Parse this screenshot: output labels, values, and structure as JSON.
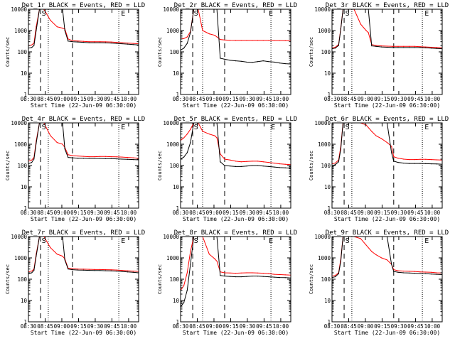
{
  "figure": {
    "shared_xlabel": "Start Time (22-Jun-09 06:30:00)",
    "shared_ylabel": "Counts/sec",
    "x_tick_labels": [
      "08:30",
      "08:45",
      "09:00",
      "09:15",
      "09:30",
      "09:45",
      "10:00"
    ],
    "y_tick_labels": [
      "1",
      "10",
      "100",
      "1000",
      "10000"
    ],
    "colors": {
      "events": "#000000",
      "lld": "#ff0000",
      "axes": "#000000",
      "background": "#ffffff"
    },
    "vertical_marker_labels": {
      "start": "S",
      "end": "E"
    }
  },
  "chart_data": [
    {
      "type": "line",
      "title": "Det_1r BLACK = Events, RED = LLD",
      "xlabel": "Start Time (22-Jun-09 06:30:00)",
      "ylabel": "Counts/sec",
      "y_scale": "log",
      "ylim": [
        1,
        10000
      ],
      "x_units": "minutes since 08:30",
      "xlim": [
        0,
        100
      ],
      "x": [
        0,
        3,
        5,
        7,
        10,
        14,
        20,
        26,
        31,
        33,
        36,
        40,
        45,
        50,
        55,
        60,
        65,
        70,
        75,
        80,
        85,
        90,
        95,
        100
      ],
      "series": [
        {
          "name": "Events",
          "color": "#000000",
          "values": [
            150,
            160,
            200,
            1000,
            12000,
            12000,
            12000,
            12000,
            12000,
            1000,
            320,
            300,
            290,
            280,
            270,
            270,
            270,
            265,
            260,
            250,
            240,
            230,
            220,
            210
          ]
        },
        {
          "name": "LLD",
          "color": "#ff0000",
          "values": [
            200,
            210,
            260,
            1500,
            12000,
            12000,
            3000,
            1500,
            1300,
            1200,
            400,
            330,
            320,
            310,
            300,
            300,
            300,
            295,
            290,
            280,
            270,
            260,
            250,
            240
          ]
        }
      ],
      "dashed_markers_minutes": [
        11,
        40
      ],
      "dotted_markers_minutes": [
        18,
        82
      ],
      "marker_labels": [
        {
          "text": "S",
          "minute": 14
        },
        {
          "text": "E",
          "minute": 86
        }
      ]
    },
    {
      "type": "line",
      "title": "Det_2r BLACK = Events, RED = LLD",
      "xlabel": "Start Time (22-Jun-09 06:30:00)",
      "ylabel": "Counts/sec",
      "y_scale": "log",
      "ylim": [
        1,
        10000
      ],
      "x_units": "minutes since 08:30",
      "xlim": [
        0,
        100
      ],
      "x": [
        0,
        3,
        6,
        9,
        12,
        16,
        20,
        26,
        31,
        33,
        36,
        40,
        45,
        50,
        55,
        60,
        65,
        70,
        75,
        80,
        85,
        90,
        95,
        100
      ],
      "series": [
        {
          "name": "Events",
          "color": "#000000",
          "values": [
            120,
            150,
            250,
            800,
            12000,
            12000,
            12000,
            12000,
            12000,
            12000,
            50,
            45,
            40,
            38,
            36,
            33,
            32,
            35,
            38,
            35,
            33,
            30,
            28,
            27
          ]
        },
        {
          "name": "LLD",
          "color": "#ff0000",
          "values": [
            400,
            420,
            500,
            900,
            12000,
            12000,
            1000,
            700,
            600,
            500,
            380,
            360,
            350,
            345,
            345,
            345,
            345,
            345,
            345,
            345,
            340,
            340,
            335,
            330
          ]
        }
      ],
      "dashed_markers_minutes": [
        11,
        40
      ],
      "dotted_markers_minutes": [
        20,
        82
      ],
      "marker_labels": [
        {
          "text": "S",
          "minute": 14
        },
        {
          "text": "E",
          "minute": 82
        }
      ]
    },
    {
      "type": "line",
      "title": "Det_3r BLACK = Events, RED = LLD",
      "xlabel": "Start Time (22-Jun-09 06:30:00)",
      "ylabel": "Counts/sec",
      "y_scale": "log",
      "ylim": [
        1,
        10000
      ],
      "x_units": "minutes since 08:30",
      "xlim": [
        0,
        100
      ],
      "x": [
        0,
        3,
        6,
        8,
        10,
        14,
        20,
        26,
        31,
        33,
        36,
        40,
        45,
        50,
        55,
        60,
        65,
        70,
        75,
        80,
        85,
        90,
        95,
        100
      ],
      "series": [
        {
          "name": "Events",
          "color": "#000000",
          "values": [
            140,
            150,
            200,
            1200,
            12000,
            12000,
            12000,
            12000,
            12000,
            12000,
            190,
            180,
            170,
            165,
            160,
            160,
            160,
            160,
            160,
            160,
            155,
            150,
            145,
            140
          ]
        },
        {
          "name": "LLD",
          "color": "#ff0000",
          "values": [
            150,
            165,
            220,
            1300,
            12000,
            12000,
            12000,
            2000,
            1000,
            800,
            220,
            200,
            190,
            185,
            180,
            180,
            180,
            180,
            180,
            175,
            170,
            165,
            160,
            155
          ]
        }
      ],
      "dashed_markers_minutes": [
        11,
        56
      ],
      "dotted_markers_minutes": [
        18,
        82
      ],
      "marker_labels": [
        {
          "text": "S",
          "minute": 14
        },
        {
          "text": "E",
          "minute": 86
        }
      ]
    },
    {
      "type": "line",
      "title": "Det_4r BLACK = Events, RED = LLD",
      "xlabel": "Start Time (22-Jun-09 06:30:00)",
      "ylabel": "Counts/sec",
      "y_scale": "log",
      "ylim": [
        1,
        10000
      ],
      "x_units": "minutes since 08:30",
      "xlim": [
        0,
        100
      ],
      "x": [
        0,
        3,
        5,
        7,
        10,
        14,
        20,
        26,
        31,
        33,
        36,
        40,
        45,
        50,
        55,
        60,
        65,
        70,
        75,
        80,
        85,
        90,
        95,
        100
      ],
      "series": [
        {
          "name": "Events",
          "color": "#000000",
          "values": [
            120,
            140,
            200,
            1100,
            12000,
            12000,
            12000,
            12000,
            12000,
            600,
            240,
            230,
            220,
            220,
            215,
            215,
            215,
            210,
            210,
            205,
            200,
            195,
            190,
            185
          ]
        },
        {
          "name": "LLD",
          "color": "#ff0000",
          "values": [
            160,
            180,
            240,
            1400,
            12000,
            12000,
            2500,
            1200,
            1000,
            700,
            320,
            290,
            280,
            270,
            260,
            260,
            265,
            265,
            260,
            255,
            250,
            240,
            230,
            220
          ]
        }
      ],
      "dashed_markers_minutes": [
        11,
        40
      ],
      "dotted_markers_minutes": [
        18,
        82
      ],
      "marker_labels": [
        {
          "text": "S",
          "minute": 14
        },
        {
          "text": "E",
          "minute": 86
        }
      ]
    },
    {
      "type": "line",
      "title": "Det_5r BLACK = Events, RED = LLD",
      "xlabel": "Start Time (22-Jun-09 06:30:00)",
      "ylabel": "Counts/sec",
      "y_scale": "log",
      "ylim": [
        1,
        10000
      ],
      "x_units": "minutes since 08:30",
      "xlim": [
        0,
        100
      ],
      "x": [
        0,
        3,
        6,
        9,
        12,
        16,
        20,
        26,
        31,
        33,
        36,
        40,
        45,
        50,
        55,
        60,
        65,
        70,
        75,
        80,
        85,
        90,
        95,
        100
      ],
      "series": [
        {
          "name": "Events",
          "color": "#000000",
          "values": [
            200,
            250,
            400,
            1200,
            12000,
            12000,
            12000,
            12000,
            12000,
            12000,
            150,
            100,
            95,
            90,
            90,
            95,
            100,
            100,
            95,
            90,
            85,
            80,
            78,
            75
          ]
        },
        {
          "name": "LLD",
          "color": "#ff0000",
          "values": [
            1500,
            2000,
            3000,
            5000,
            12000,
            12000,
            4000,
            3000,
            2500,
            2000,
            350,
            200,
            180,
            160,
            150,
            155,
            160,
            160,
            150,
            140,
            130,
            120,
            115,
            110
          ]
        }
      ],
      "dashed_markers_minutes": [
        11,
        40
      ],
      "dotted_markers_minutes": [
        20,
        82
      ],
      "marker_labels": [
        {
          "text": "S",
          "minute": 14
        },
        {
          "text": "E",
          "minute": 84
        }
      ]
    },
    {
      "type": "line",
      "title": "Det_6r BLACK = Events, RED = LLD",
      "xlabel": "Start Time (22-Jun-09 06:30:00)",
      "ylabel": "Counts/sec",
      "y_scale": "log",
      "ylim": [
        1,
        10000
      ],
      "x_units": "minutes since 08:30",
      "xlim": [
        0,
        100
      ],
      "x": [
        0,
        3,
        6,
        8,
        10,
        14,
        20,
        26,
        31,
        36,
        40,
        45,
        50,
        54,
        56,
        60,
        65,
        70,
        75,
        80,
        85,
        90,
        95,
        100
      ],
      "series": [
        {
          "name": "Events",
          "color": "#000000",
          "values": [
            100,
            110,
            150,
            600,
            12000,
            12000,
            12000,
            12000,
            12000,
            12000,
            12000,
            12000,
            12000,
            400,
            160,
            140,
            130,
            125,
            125,
            125,
            122,
            120,
            118,
            115
          ]
        },
        {
          "name": "LLD",
          "color": "#ff0000",
          "values": [
            120,
            130,
            180,
            800,
            12000,
            12000,
            12000,
            12000,
            8000,
            4000,
            2500,
            1800,
            1200,
            800,
            260,
            220,
            200,
            190,
            190,
            195,
            195,
            190,
            185,
            180
          ]
        }
      ],
      "dashed_markers_minutes": [
        11,
        56
      ],
      "dotted_markers_minutes": [
        18,
        82
      ],
      "marker_labels": [
        {
          "text": "S",
          "minute": 14
        },
        {
          "text": "E",
          "minute": 86
        }
      ]
    },
    {
      "type": "line",
      "title": "Det_7r BLACK = Events, RED = LLD",
      "xlabel": "Start Time (22-Jun-09 06:30:00)",
      "ylabel": "Counts/sec",
      "y_scale": "log",
      "ylim": [
        1,
        10000
      ],
      "x_units": "minutes since 08:30",
      "xlim": [
        0,
        100
      ],
      "x": [
        0,
        3,
        5,
        7,
        10,
        14,
        20,
        26,
        31,
        33,
        36,
        40,
        45,
        50,
        55,
        60,
        65,
        70,
        75,
        80,
        85,
        90,
        95,
        100
      ],
      "series": [
        {
          "name": "Events",
          "color": "#000000",
          "values": [
            180,
            200,
            260,
            1200,
            12000,
            12000,
            12000,
            12000,
            12000,
            800,
            300,
            280,
            270,
            265,
            260,
            255,
            255,
            250,
            245,
            240,
            230,
            220,
            210,
            200
          ]
        },
        {
          "name": "LLD",
          "color": "#ff0000",
          "values": [
            220,
            240,
            300,
            1500,
            12000,
            12000,
            3000,
            1500,
            1200,
            900,
            330,
            310,
            300,
            295,
            290,
            285,
            285,
            280,
            275,
            270,
            260,
            250,
            240,
            230
          ]
        }
      ],
      "dashed_markers_minutes": [
        11,
        40
      ],
      "dotted_markers_minutes": [
        18,
        82
      ],
      "marker_labels": [
        {
          "text": "S",
          "minute": 14
        },
        {
          "text": "E",
          "minute": 86
        }
      ]
    },
    {
      "type": "line",
      "title": "Det_8r BLACK = Events, RED = LLD",
      "xlabel": "Start Time (22-Jun-09 06:30:00)",
      "ylabel": "Counts/sec",
      "y_scale": "log",
      "ylim": [
        1,
        10000
      ],
      "x_units": "minutes since 08:30",
      "xlim": [
        0,
        100
      ],
      "x": [
        0,
        3,
        6,
        9,
        12,
        16,
        20,
        26,
        31,
        33,
        36,
        40,
        45,
        50,
        55,
        60,
        65,
        70,
        75,
        80,
        85,
        90,
        95,
        100
      ],
      "series": [
        {
          "name": "Events",
          "color": "#000000",
          "values": [
            5,
            8,
            30,
            500,
            12000,
            12000,
            12000,
            12000,
            12000,
            12000,
            150,
            140,
            135,
            130,
            130,
            135,
            140,
            140,
            135,
            130,
            125,
            120,
            118,
            115
          ]
        },
        {
          "name": "LLD",
          "color": "#ff0000",
          "values": [
            30,
            50,
            200,
            2000,
            12000,
            12000,
            12000,
            1500,
            900,
            700,
            220,
            200,
            195,
            190,
            195,
            200,
            200,
            195,
            190,
            180,
            170,
            165,
            160,
            155
          ]
        }
      ],
      "dashed_markers_minutes": [
        11,
        40
      ],
      "dotted_markers_minutes": [
        20,
        82
      ],
      "marker_labels": [
        {
          "text": "S",
          "minute": 14
        },
        {
          "text": "E",
          "minute": 82
        }
      ]
    },
    {
      "type": "line",
      "title": "Det_9r BLACK = Events, RED = LLD",
      "xlabel": "Start Time (22-Jun-09 06:30:00)",
      "ylabel": "Counts/sec",
      "y_scale": "log",
      "ylim": [
        1,
        10000
      ],
      "x_units": "minutes since 08:30",
      "xlim": [
        0,
        100
      ],
      "x": [
        0,
        3,
        6,
        8,
        10,
        14,
        20,
        26,
        31,
        36,
        40,
        45,
        50,
        54,
        56,
        60,
        65,
        70,
        75,
        80,
        85,
        90,
        95,
        100
      ],
      "series": [
        {
          "name": "Events",
          "color": "#000000",
          "values": [
            120,
            130,
            180,
            700,
            12000,
            12000,
            12000,
            12000,
            12000,
            12000,
            12000,
            12000,
            12000,
            500,
            230,
            210,
            200,
            195,
            190,
            185,
            180,
            175,
            170,
            165
          ]
        },
        {
          "name": "LLD",
          "color": "#ff0000",
          "values": [
            140,
            150,
            200,
            900,
            12000,
            12000,
            12000,
            8000,
            4000,
            2000,
            1400,
            1000,
            800,
            500,
            280,
            250,
            240,
            235,
            230,
            220,
            215,
            210,
            200,
            195
          ]
        }
      ],
      "dashed_markers_minutes": [
        11,
        56
      ],
      "dotted_markers_minutes": [
        18,
        82
      ],
      "marker_labels": [
        {
          "text": "S",
          "minute": 14
        },
        {
          "text": "E",
          "minute": 86
        }
      ]
    }
  ]
}
